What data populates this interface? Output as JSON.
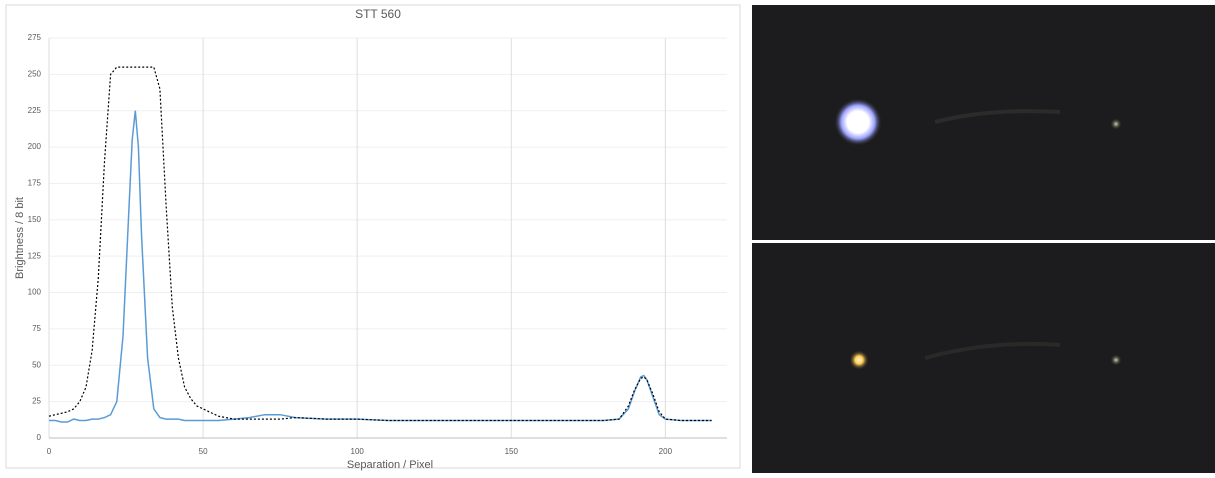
{
  "chart_data": {
    "type": "line",
    "title": "STT 560",
    "x_label": "Separation / Pixel",
    "y_label": "Brightness / 8 bit",
    "x": [
      0,
      2,
      4,
      6,
      8,
      10,
      12,
      14,
      16,
      18,
      20,
      22,
      24,
      26,
      27,
      28,
      29,
      30,
      32,
      34,
      36,
      38,
      40,
      42,
      44,
      46,
      48,
      50,
      55,
      60,
      65,
      70,
      75,
      80,
      90,
      100,
      110,
      120,
      130,
      140,
      150,
      160,
      170,
      180,
      185,
      188,
      190,
      192,
      193,
      194,
      196,
      198,
      200,
      205,
      210,
      215
    ],
    "series": [
      {
        "color": "#5b9bd5",
        "dash": false,
        "values": [
          12,
          12,
          11,
          11,
          13,
          12,
          12,
          13,
          13,
          14,
          16,
          25,
          70,
          160,
          205,
          225,
          200,
          140,
          55,
          20,
          14,
          13,
          13,
          13,
          12,
          12,
          12,
          12,
          12,
          13,
          14,
          16,
          16,
          14,
          13,
          13,
          12,
          12,
          12,
          12,
          12,
          12,
          12,
          12,
          13,
          20,
          32,
          42,
          43,
          40,
          28,
          16,
          13,
          12,
          12,
          12
        ]
      },
      {
        "color": "#000000",
        "dash": true,
        "values": [
          15,
          16,
          17,
          18,
          20,
          25,
          35,
          60,
          110,
          190,
          250,
          255,
          255,
          255,
          255,
          255,
          255,
          255,
          255,
          255,
          240,
          160,
          90,
          55,
          35,
          27,
          22,
          20,
          15,
          13,
          13,
          13,
          13,
          14,
          13,
          13,
          12,
          12,
          12,
          12,
          12,
          12,
          12,
          12,
          13,
          22,
          33,
          41,
          42,
          40,
          30,
          18,
          13,
          12,
          12,
          12
        ]
      }
    ],
    "xlim": [
      0,
      220
    ],
    "ylim": [
      0,
      275
    ],
    "xticks": [
      0,
      50,
      100,
      150,
      200
    ],
    "yticks": [
      0,
      25,
      50,
      75,
      100,
      125,
      150,
      175,
      200,
      225,
      250,
      275
    ],
    "grid": true
  }
}
